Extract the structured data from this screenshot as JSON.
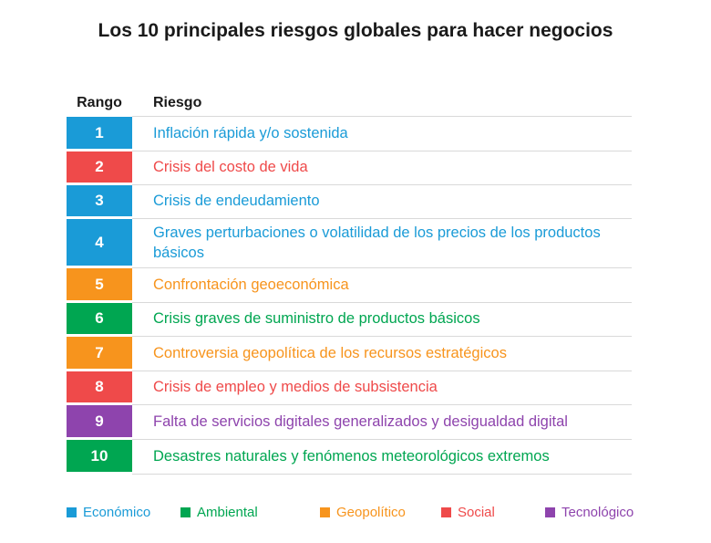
{
  "title": "Los 10 principales riesgos globales para hacer negocios",
  "headers": {
    "rank": "Rango",
    "risk": "Riesgo"
  },
  "colors": {
    "economico": "#1a9bd7",
    "ambiental": "#00a651",
    "geopolitico": "#f7941d",
    "social": "#ef4a4a",
    "tecnologico": "#8e44ad"
  },
  "rows": [
    {
      "rank": "1",
      "text": "Inflación rápida y/o sostenida",
      "category": "economico"
    },
    {
      "rank": "2",
      "text": "Crisis del costo de vida",
      "category": "social"
    },
    {
      "rank": "3",
      "text": "Crisis de endeudamiento",
      "category": "economico"
    },
    {
      "rank": "4",
      "text": "Graves perturbaciones o volatilidad de los precios de los productos básicos",
      "category": "economico"
    },
    {
      "rank": "5",
      "text": "Confrontación geoeconómica",
      "category": "geopolitico"
    },
    {
      "rank": "6",
      "text": "Crisis graves de suministro de productos básicos",
      "category": "ambiental"
    },
    {
      "rank": "7",
      "text": "Controversia geopolítica de los recursos estratégicos",
      "category": "geopolitico"
    },
    {
      "rank": "8",
      "text": "Crisis de empleo y medios de subsistencia",
      "category": "social"
    },
    {
      "rank": "9",
      "text": "Falta de servicios digitales generalizados y desigualdad digital",
      "category": "tecnologico"
    },
    {
      "rank": "10",
      "text": "Desastres naturales y fenómenos meteorológicos extremos",
      "category": "ambiental"
    }
  ],
  "legend": [
    {
      "label": "Económico",
      "category": "economico"
    },
    {
      "label": "Ambiental",
      "category": "ambiental"
    },
    {
      "label": "Geopolítico",
      "category": "geopolitico"
    },
    {
      "label": "Social",
      "category": "social"
    },
    {
      "label": "Tecnológico",
      "category": "tecnologico"
    }
  ]
}
